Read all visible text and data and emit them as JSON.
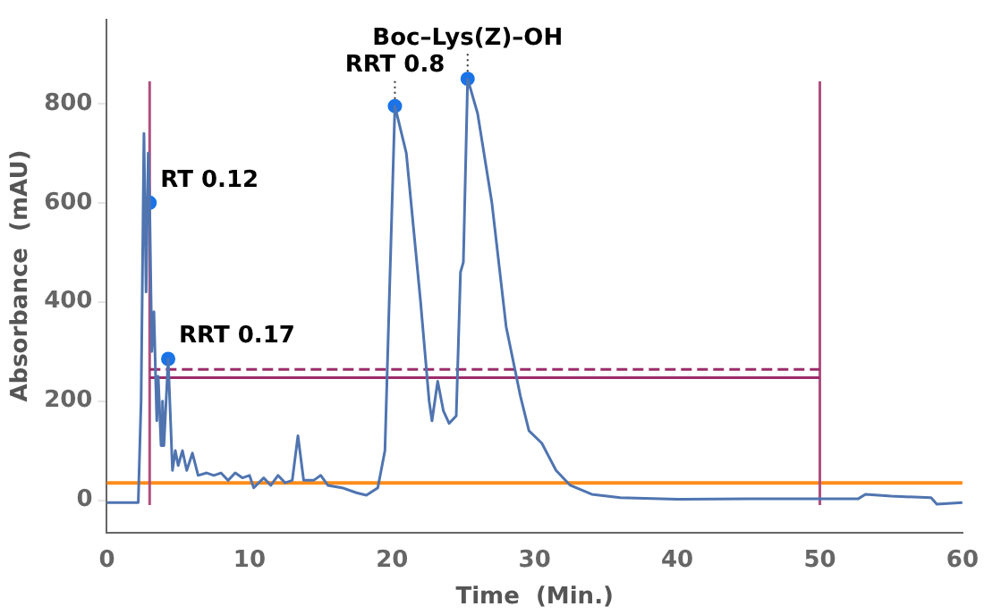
{
  "chart_data": {
    "type": "line",
    "xlabel": "Time  (Min.)",
    "ylabel": "Absorbance  (mAU)",
    "xlim": [
      0,
      60
    ],
    "xticks": [
      0,
      10,
      20,
      30,
      40,
      50,
      60
    ],
    "ylim": [
      -65,
      970
    ],
    "yticks": [
      0,
      200,
      400,
      600,
      800
    ],
    "grid": false,
    "legend": false,
    "marker": "none",
    "series": [
      {
        "color": "#4f74b0",
        "x": [
          0,
          2.2,
          2.4,
          2.6,
          2.75,
          2.9,
          3.0,
          3.15,
          3.3,
          3.5,
          3.6,
          3.8,
          3.9,
          4.0,
          4.3,
          4.6,
          4.8,
          5.0,
          5.3,
          5.6,
          6.0,
          6.4,
          7,
          7.5,
          8,
          8.5,
          9,
          9.5,
          10,
          10.3,
          11,
          11.5,
          12,
          12.5,
          13.0,
          13.4,
          13.8,
          14.5,
          15,
          15.5,
          16.5,
          17.5,
          18.2,
          19,
          19.5,
          19.8,
          20.2,
          21,
          22,
          22.6,
          22.8,
          23.2,
          23.6,
          24.0,
          24.5,
          24.8,
          25.0,
          25.3,
          26,
          27,
          28,
          29,
          29.6,
          30.5,
          31.5,
          32.5,
          34,
          36,
          40,
          45,
          50,
          52.7,
          53.2,
          55,
          57.8,
          58.2,
          60
        ],
        "values": [
          -5,
          -5,
          200,
          740,
          420,
          700,
          600,
          300,
          380,
          160,
          250,
          110,
          200,
          110,
          285,
          60,
          100,
          70,
          100,
          60,
          95,
          50,
          55,
          50,
          55,
          40,
          55,
          45,
          50,
          25,
          45,
          30,
          50,
          35,
          40,
          130,
          40,
          40,
          50,
          30,
          25,
          15,
          10,
          25,
          100,
          400,
          795,
          700,
          400,
          200,
          160,
          240,
          180,
          155,
          170,
          460,
          480,
          850,
          780,
          600,
          350,
          210,
          140,
          115,
          60,
          30,
          12,
          5,
          2,
          3,
          3,
          3,
          12,
          8,
          5,
          -8,
          -5
        ]
      },
      {
        "type": "scatter",
        "color": "#1a73e8",
        "marker": "circle",
        "x": [
          3.0,
          4.3,
          20.2,
          25.3
        ],
        "values": [
          600,
          285,
          795,
          850
        ]
      },
      {
        "type": "line",
        "color": "#9b2c6a",
        "line_style": "solid",
        "x": [
          3,
          50
        ],
        "values": [
          247,
          247
        ]
      },
      {
        "type": "line",
        "color": "#9b2c6a",
        "line_style": "dashed",
        "x": [
          3,
          50
        ],
        "values": [
          264,
          264
        ]
      },
      {
        "type": "line",
        "color": "#b0507f",
        "line_style": "solid",
        "x": [
          3,
          3
        ],
        "values": [
          -10,
          845
        ]
      },
      {
        "type": "line",
        "color": "#b0507f",
        "line_style": "solid",
        "x": [
          50,
          50
        ],
        "values": [
          -10,
          845
        ]
      }
    ],
    "ref_lines": [
      {
        "axis": "y",
        "value": 35,
        "color": "#ff8c1a",
        "line_style": "solid"
      }
    ],
    "annotations": [
      {
        "text": "RT 0.12",
        "x": 3.0,
        "y": 600
      },
      {
        "text": "RRT 0.17",
        "x": 4.3,
        "y": 285
      },
      {
        "text": "RRT 0.8",
        "x": 20.2,
        "y": 795
      },
      {
        "text": "Boc–Lys(Z)–OH",
        "x": 25.3,
        "y": 850
      }
    ]
  }
}
